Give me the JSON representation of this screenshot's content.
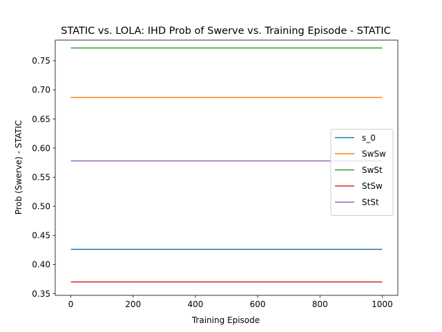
{
  "chart_data": {
    "type": "line",
    "title": "STATIC vs. LOLA: IHD Prob of Swerve vs. Training Episode - STATIC",
    "xlabel": "Training Episode",
    "ylabel": "Prob (Swerve) - STATIC",
    "xlim": [
      -50,
      1050
    ],
    "ylim": [
      0.347,
      0.7855
    ],
    "xticks": [
      0,
      200,
      400,
      600,
      800,
      1000
    ],
    "yticks": [
      0.35,
      0.4,
      0.45,
      0.5,
      0.55,
      0.6,
      0.65,
      0.7,
      0.75
    ],
    "xtick_labels": [
      "0",
      "200",
      "400",
      "600",
      "800",
      "1000"
    ],
    "ytick_labels": [
      "0.35",
      "0.40",
      "0.45",
      "0.50",
      "0.55",
      "0.60",
      "0.65",
      "0.70",
      "0.75"
    ],
    "grid": false,
    "legend_position": "center-right",
    "x": [
      0,
      1000
    ],
    "series": [
      {
        "name": "s_0",
        "color": "#1f77b4",
        "values": [
          0.426,
          0.426
        ]
      },
      {
        "name": "SwSw",
        "color": "#ff7f0e",
        "values": [
          0.687,
          0.687
        ]
      },
      {
        "name": "SwSt",
        "color": "#2ca02c",
        "values": [
          0.772,
          0.772
        ]
      },
      {
        "name": "StSw",
        "color": "#d62728",
        "values": [
          0.37,
          0.37
        ]
      },
      {
        "name": "StSt",
        "color": "#9467bd",
        "values": [
          0.578,
          0.578
        ]
      }
    ]
  }
}
